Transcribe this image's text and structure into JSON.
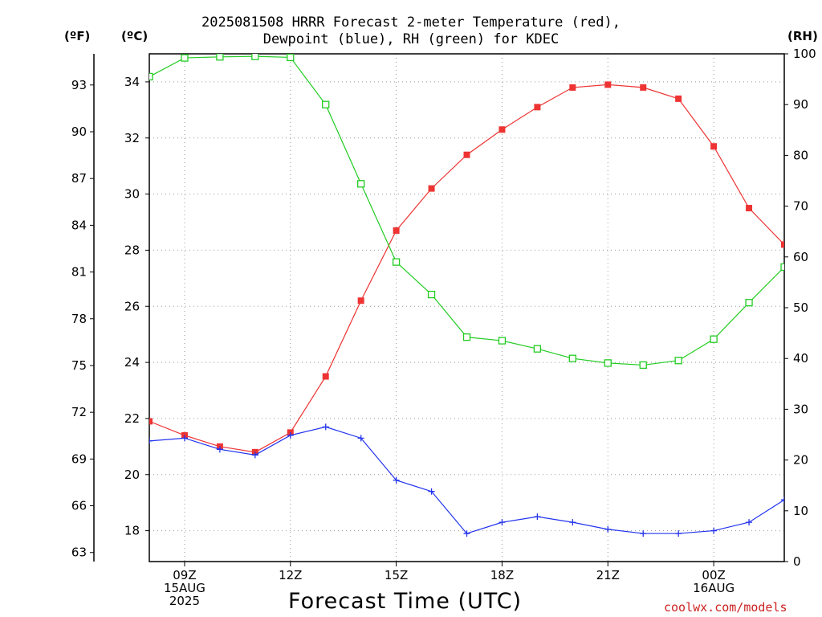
{
  "title_line1": "2025081508 HRRR Forecast 2-meter Temperature (red),",
  "title_line2": "Dewpoint (blue), RH (green) for KDEC",
  "left_unit_f": "(ºF)",
  "left_unit_c": "(ºC)",
  "right_unit": "(RH)",
  "credit": "coolwx.com/models",
  "colors": {
    "temperature": "#ee3333",
    "dewpoint": "#2233ee",
    "rh": "#22cc22",
    "grid": "#999999"
  },
  "chart_data": {
    "type": "line",
    "title": "2025081508 HRRR Forecast 2-meter Temperature (red), Dewpoint (blue), RH (green) for KDEC",
    "xlabel": "Forecast Time (UTC)",
    "x": [
      "08Z",
      "09Z",
      "10Z",
      "11Z",
      "12Z",
      "13Z",
      "14Z",
      "15Z",
      "16Z",
      "17Z",
      "18Z",
      "19Z",
      "20Z",
      "21Z",
      "22Z",
      "23Z",
      "00Z",
      "01Z",
      "02Z"
    ],
    "x_tick_labels": [
      {
        "x": "09Z",
        "lines": [
          "09Z",
          "15AUG",
          "2025"
        ]
      },
      {
        "x": "12Z",
        "lines": [
          "12Z"
        ]
      },
      {
        "x": "15Z",
        "lines": [
          "15Z"
        ]
      },
      {
        "x": "18Z",
        "lines": [
          "18Z"
        ]
      },
      {
        "x": "21Z",
        "lines": [
          "21Z"
        ]
      },
      {
        "x": "00Z",
        "lines": [
          "00Z",
          "16AUG"
        ]
      }
    ],
    "left_axis_c": {
      "label": "(ºC)",
      "ylim": [
        16.9,
        35.0
      ],
      "ticks": [
        18,
        20,
        22,
        24,
        26,
        28,
        30,
        32,
        34
      ]
    },
    "left_axis_f": {
      "label": "(ºF)",
      "ticks": [
        63,
        66,
        69,
        72,
        75,
        78,
        81,
        84,
        87,
        90,
        93
      ]
    },
    "right_axis_rh": {
      "label": "(RH)",
      "ylim": [
        0,
        100
      ],
      "ticks": [
        0,
        10,
        20,
        30,
        40,
        50,
        60,
        70,
        80,
        90,
        100
      ]
    },
    "grid": true,
    "series": [
      {
        "name": "2-meter Temperature",
        "color": "red",
        "axis": "celsius",
        "marker": "filled-square",
        "values": [
          21.9,
          21.4,
          21.0,
          20.8,
          21.5,
          23.5,
          26.2,
          28.7,
          30.2,
          31.4,
          32.3,
          33.1,
          33.8,
          33.9,
          33.8,
          33.4,
          31.7,
          29.5,
          28.2
        ]
      },
      {
        "name": "Dewpoint",
        "color": "blue",
        "axis": "celsius",
        "marker": "plus",
        "values": [
          21.2,
          21.3,
          20.9,
          20.7,
          21.4,
          21.7,
          21.3,
          19.8,
          19.4,
          17.9,
          18.3,
          18.5,
          18.3,
          18.05,
          17.9,
          17.9,
          18.0,
          18.3,
          19.1
        ]
      },
      {
        "name": "RH",
        "color": "green",
        "axis": "rh",
        "marker": "open-square",
        "values": [
          95.5,
          99.2,
          99.4,
          99.5,
          99.3,
          90.0,
          74.4,
          59.0,
          52.6,
          44.2,
          43.5,
          41.9,
          40.0,
          39.1,
          38.7,
          39.6,
          43.8,
          51.0,
          58.0
        ]
      }
    ]
  }
}
